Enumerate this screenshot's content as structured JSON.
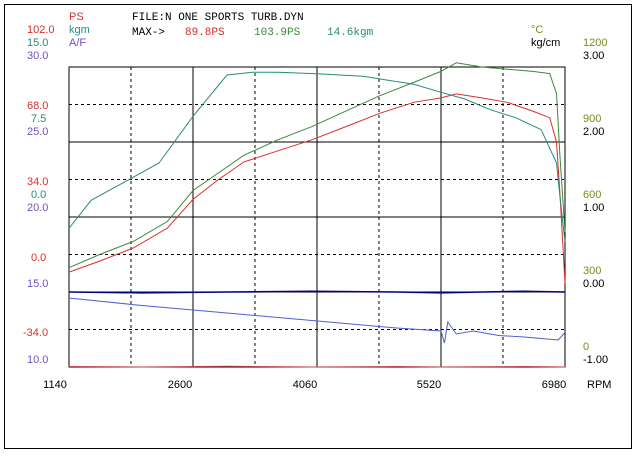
{
  "header": {
    "file_line": "FILE:N ONE  SPORTS   TURB.DYN",
    "max_label": "MAX->",
    "max_ps_red": "89.8PS",
    "max_ps_green": "103.9PS",
    "max_kgm": "14.6kgm"
  },
  "left_axis": {
    "units": [
      {
        "text": "PS",
        "color": "#d8302a"
      },
      {
        "text": "kgm",
        "color": "#2a8a7a"
      },
      {
        "text": "A/F",
        "color": "#7050c0"
      }
    ],
    "top_values": [
      {
        "text": "102.0",
        "color": "#d8302a"
      },
      {
        "text": "15.0",
        "color": "#2a8a7a"
      },
      {
        "text": "30.0",
        "color": "#7050c0"
      }
    ],
    "mid1_values": [
      {
        "text": "68.0",
        "color": "#d8302a"
      },
      {
        "text": "7.5",
        "color": "#2a8a7a"
      },
      {
        "text": "25.0",
        "color": "#7050c0"
      }
    ],
    "mid2_values": [
      {
        "text": "34.0",
        "color": "#d8302a"
      },
      {
        "text": "0.0",
        "color": "#2a8a7a"
      },
      {
        "text": "20.0",
        "color": "#7050c0"
      }
    ],
    "mid3_values": [
      {
        "text": "0.0",
        "color": "#d8302a"
      },
      {
        "text": "15.0",
        "color": "#7050c0"
      }
    ],
    "bottom_values": [
      {
        "text": "-34.0",
        "color": "#d8302a"
      },
      {
        "text": "10.0",
        "color": "#7050c0"
      }
    ]
  },
  "right_axis": {
    "unit_temp": "°C",
    "unit_boost": "kg/cm",
    "temp_ticks": [
      "1200",
      "900",
      "600",
      "300",
      "0"
    ],
    "boost_ticks": [
      "3.00",
      "2.00",
      "1.00",
      "0.00",
      "-1.00"
    ],
    "temp_color": "#7a8a20",
    "boost_color": "#000000"
  },
  "chart_data": {
    "type": "line",
    "xlabel": "RPM",
    "x_ticks": [
      "1140",
      "2600",
      "4060",
      "5520",
      "6980"
    ],
    "xlim": [
      1140,
      6980
    ],
    "grid": true,
    "series": [
      {
        "color": "#d8302a",
        "unit": "PS",
        "ylim": [
          -34,
          102
        ],
        "x": [
          1140,
          1500,
          1900,
          2300,
          2600,
          2900,
          3200,
          3600,
          4000,
          4400,
          4800,
          5200,
          5520,
          5700,
          6000,
          6300,
          6600,
          6800,
          6880,
          6920,
          6980
        ],
        "y": [
          9,
          14,
          20,
          29,
          42,
          51,
          59,
          64,
          69,
          75,
          81,
          86,
          88,
          89.8,
          88,
          86,
          82,
          79,
          68,
          45,
          4
        ]
      },
      {
        "color": "#3a8a3a",
        "unit": "PS",
        "ylim": [
          -34,
          102
        ],
        "x": [
          1140,
          1500,
          1900,
          2300,
          2600,
          2900,
          3200,
          3600,
          4000,
          4400,
          4800,
          5200,
          5520,
          5700,
          6000,
          6300,
          6600,
          6800,
          6880,
          6920,
          6980
        ],
        "y": [
          11,
          17,
          23,
          32,
          46,
          54,
          62,
          69,
          75,
          82,
          89,
          95,
          100,
          103.9,
          102,
          101,
          100,
          99,
          90,
          62,
          27
        ]
      },
      {
        "color": "#2a8a7a",
        "unit": "kgm",
        "ylim": [
          -7.5,
          15
        ],
        "x": [
          1140,
          1400,
          1800,
          2200,
          2600,
          3000,
          3300,
          3600,
          4060,
          4600,
          5200,
          5520,
          5800,
          6100,
          6400,
          6700,
          6880,
          6920,
          6980
        ],
        "y": [
          2.9,
          5.0,
          6.4,
          7.8,
          11.3,
          14.4,
          14.6,
          14.6,
          14.5,
          14.3,
          13.7,
          13.1,
          12.6,
          11.8,
          11.2,
          10.3,
          7.8,
          5.3,
          1.9
        ]
      },
      {
        "color": "#5060d0",
        "unit": "A/F",
        "ylim": [
          10,
          30
        ],
        "x": [
          1140,
          2000,
          3000,
          4000,
          5000,
          5520,
          5560,
          5600,
          5700,
          5900,
          6200,
          6500,
          6700,
          6900,
          6980
        ],
        "y": [
          14.6,
          14.1,
          13.6,
          13.1,
          12.6,
          12.4,
          11.6,
          13.0,
          12.2,
          12.4,
          12.1,
          12.0,
          11.9,
          11.8,
          12.3
        ]
      },
      {
        "color": "#000080",
        "unit": "kg/cm",
        "ylim": [
          -1,
          3
        ],
        "x": [
          1140,
          2000,
          3000,
          4000,
          5000,
          5520,
          6000,
          6500,
          6980
        ],
        "y": [
          0.0,
          -0.01,
          0.0,
          0.01,
          0.0,
          -0.01,
          0.0,
          0.01,
          0.0
        ]
      },
      {
        "color": "#c04050",
        "unit": "°C",
        "ylim": [
          0,
          1200
        ],
        "x": [
          1140,
          2000,
          3000,
          4000,
          5000,
          5520,
          6000,
          6500,
          6980
        ],
        "y": [
          2,
          0,
          3,
          0,
          2,
          0,
          1,
          2,
          0
        ]
      }
    ]
  }
}
